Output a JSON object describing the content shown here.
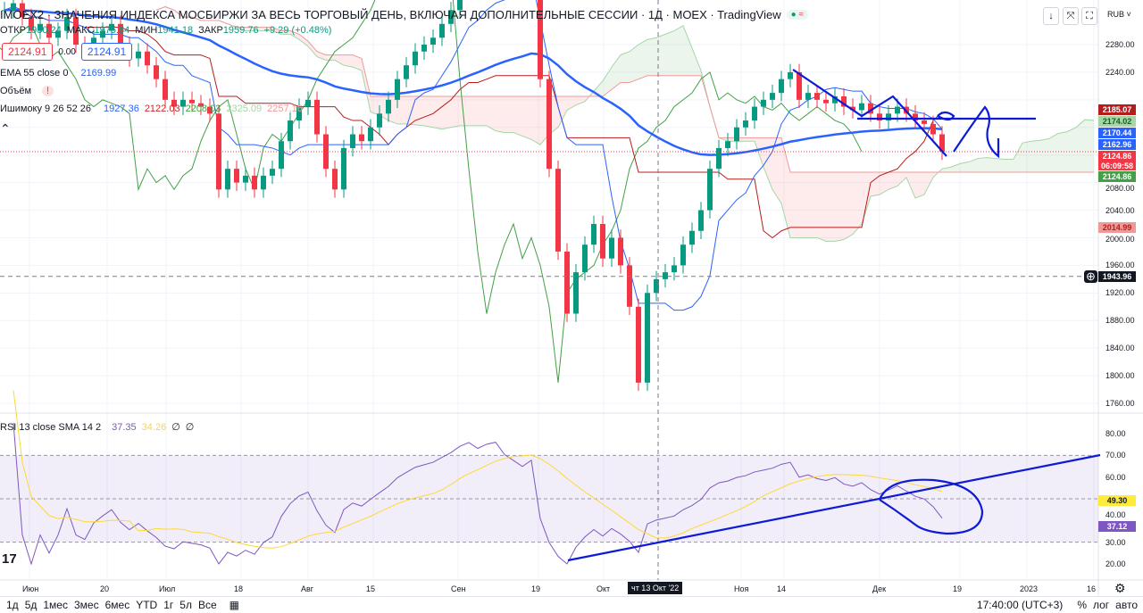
{
  "header": {
    "title": "IMOEX2 · ЗНАЧЕНИЯ ИНДЕКСА МОСБИРЖИ ЗА ВЕСЬ ТОРГОВЫЙ ДЕНЬ, ВКЛЮЧАЯ ДОПОЛНИТЕЛЬНЫЕ СЕССИИ · 1Д · MOEX · TradingView",
    "status_icon": "market-open-dot",
    "ohlc": {
      "open_label": "ОТКР",
      "open": "1950.24",
      "high_label": "МАКС",
      "high": "1975.84",
      "low_label": "МИН",
      "low": "1941.18",
      "close_label": "ЗАКР",
      "close": "1959.76",
      "change": "+9.29 (+0.48%)"
    },
    "sell_price": "2124.91",
    "spread": "0.00",
    "buy_price": "2124.91"
  },
  "indicators": {
    "ema": {
      "label": "EMA 55 close 0",
      "value": "2169.99"
    },
    "volume": {
      "label": "Объём",
      "warning": "!"
    },
    "ichimoku": {
      "label": "Ишимоку 9 26 52 26",
      "values": [
        "1927.36",
        "2122.03",
        "2208.03",
        "2325.09",
        "2257.16"
      ]
    },
    "rsi": {
      "label": "RSI 13 close SMA 14 2",
      "rsi": "37.35",
      "sma": "34.26",
      "e1": "∅",
      "e2": "∅"
    }
  },
  "toolbar": {
    "currency": "RUB ˅",
    "buttons": [
      "↓",
      "⤧",
      "⛶"
    ]
  },
  "price_axis": {
    "ticks": [
      "2280.00",
      "2240.00",
      "2080.00",
      "2040.00",
      "2000.00",
      "1960.00",
      "1920.00",
      "1880.00",
      "1840.00",
      "1800.00",
      "1760.00"
    ],
    "rsi_ticks": [
      "80.00",
      "70.00",
      "60.00",
      "40.00",
      "30.00",
      "20.00"
    ],
    "tags": [
      {
        "value": "2185.07",
        "color": "#b71c1c"
      },
      {
        "value": "2174.02",
        "color": "#a5d6a7",
        "text": "#1b5e20"
      },
      {
        "value": "2170.44",
        "color": "#2962ff"
      },
      {
        "value": "2162.96",
        "color": "#2962ff"
      },
      {
        "value": "2124.86",
        "color": "#f23645",
        "sub": "06:09:58"
      },
      {
        "value": "2124.86",
        "color": "#43a047"
      },
      {
        "value": "2014.99",
        "color": "#ef9a9a",
        "text": "#b71c1c"
      },
      {
        "value": "1943.96",
        "color": "#131722"
      }
    ],
    "rsi_tags": [
      {
        "value": "49.30",
        "color": "#ffeb3b",
        "text": "#131722"
      },
      {
        "value": "37.12",
        "color": "#7e57c2"
      }
    ]
  },
  "time_axis": {
    "labels": [
      "Июн",
      "20",
      "Июл",
      "18",
      "Авг",
      "15",
      "Сен",
      "19",
      "Окт",
      "Ноя",
      "14",
      "Дек",
      "19",
      "2023",
      "16"
    ],
    "crosshair": "чт 13 Окт '22"
  },
  "bottom": {
    "periods": [
      "1д",
      "5д",
      "1мес",
      "3мес",
      "6мес",
      "YTD",
      "1г",
      "5л",
      "Все"
    ],
    "time": "17:40:00 (UTC+3)",
    "percent": "%",
    "log": "лог",
    "auto": "авто"
  },
  "chart_data": {
    "type": "candlestick",
    "title": "IMOEX2 1Д",
    "ylim": [
      1740,
      2300
    ],
    "rsi_ylim": [
      15,
      85
    ],
    "closes": [
      2330,
      2340,
      2320,
      2300,
      2310,
      2290,
      2300,
      2320,
      2280,
      2270,
      2290,
      2300,
      2310,
      2280,
      2260,
      2270,
      2250,
      2230,
      2200,
      2190,
      2200,
      2195,
      2190,
      2180,
      2070,
      2100,
      2080,
      2090,
      2070,
      2090,
      2100,
      2140,
      2170,
      2190,
      2200,
      2150,
      2100,
      2070,
      2130,
      2150,
      2140,
      2160,
      2180,
      2200,
      2230,
      2250,
      2270,
      2280,
      2290,
      2310,
      2330,
      2360,
      2380,
      2370,
      2390,
      2400,
      2380,
      2370,
      2360,
      2380,
      2230,
      2100,
      1980,
      1890,
      1950,
      1990,
      2020,
      1970,
      2000,
      1960,
      1900,
      1790,
      1920,
      1940,
      1950,
      1960,
      1990,
      2010,
      2040,
      2100,
      2130,
      2140,
      2160,
      2170,
      2190,
      2200,
      2210,
      2230,
      2240,
      2200,
      2210,
      2200,
      2195,
      2205,
      2190,
      2185,
      2195,
      2180,
      2170,
      2180,
      2190,
      2180,
      2170,
      2165,
      2150,
      2125
    ],
    "crosshair_price": 1943.96,
    "last_price": 2124.86
  }
}
